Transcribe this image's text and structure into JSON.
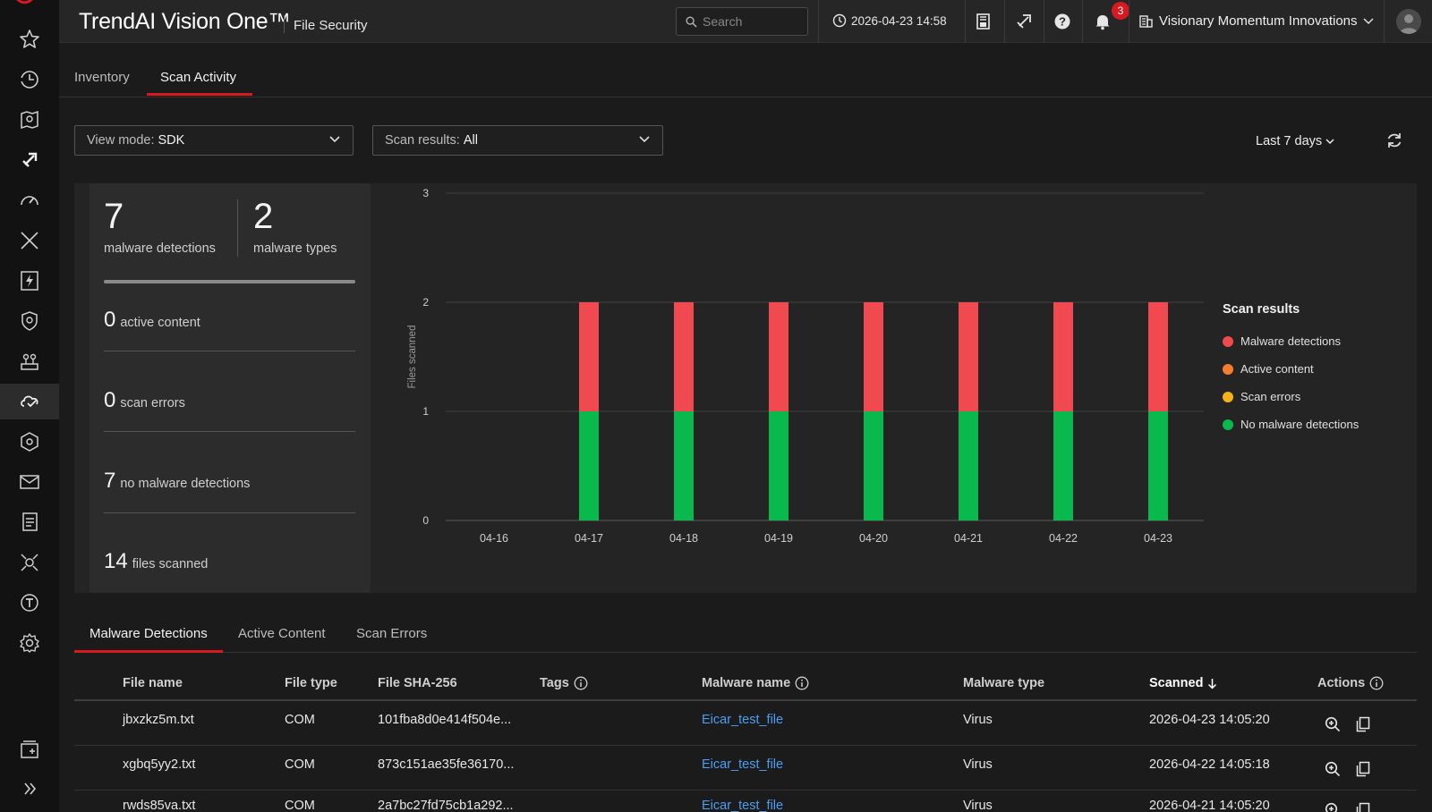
{
  "header": {
    "brand": "TrendAI Vision One™",
    "product": "File Security",
    "search_placeholder": "Search",
    "datetime": "2026-04-23 14:58",
    "notification_count": "3",
    "organization": "Visionary Momentum Innovations"
  },
  "rail_icons": [
    "star-icon",
    "history-icon",
    "map-pin-icon",
    "rocket-icon",
    "gauge-icon",
    "crossed-swords-icon",
    "lightning-icon",
    "shield-icon",
    "network-icon",
    "cloud-file-icon",
    "shield-settings-icon",
    "mail-icon",
    "document-icon",
    "bug-icon",
    "t-circle-icon",
    "gear-icon",
    "add-dashboard-icon",
    "expand-icon"
  ],
  "tabs": {
    "inventory": "Inventory",
    "scan_activity": "Scan Activity"
  },
  "filters": {
    "view_mode_label": "View mode:",
    "view_mode_value": "SDK",
    "scan_results_label": "Scan results:",
    "scan_results_value": "All",
    "range": "Last 7 days"
  },
  "stats": {
    "malware_detections": {
      "value": "7",
      "label": "malware detections"
    },
    "malware_types": {
      "value": "2",
      "label": "malware types"
    },
    "active_content": {
      "value": "0",
      "label": "active content"
    },
    "scan_errors": {
      "value": "0",
      "label": "scan errors"
    },
    "no_malware": {
      "value": "7",
      "label": "no malware detections"
    },
    "files_scanned": {
      "value": "14",
      "label": "files scanned"
    },
    "progress": 1.0
  },
  "chart_data": {
    "type": "bar",
    "stacked": true,
    "categories": [
      "04-16",
      "04-17",
      "04-18",
      "04-19",
      "04-20",
      "04-21",
      "04-22",
      "04-23"
    ],
    "series": [
      {
        "name": "No malware detections",
        "color": "#0ab94e",
        "values": [
          0,
          1,
          1,
          1,
          1,
          1,
          1,
          1
        ]
      },
      {
        "name": "Scan errors",
        "color": "#f5b21a",
        "values": [
          0,
          0,
          0,
          0,
          0,
          0,
          0,
          0
        ]
      },
      {
        "name": "Active content",
        "color": "#f57f2e",
        "values": [
          0,
          0,
          0,
          0,
          0,
          0,
          0,
          0
        ]
      },
      {
        "name": "Malware detections",
        "color": "#f04a50",
        "values": [
          0,
          1,
          1,
          1,
          1,
          1,
          1,
          1
        ]
      }
    ],
    "ylabel": "Files scanned",
    "ylim": [
      0,
      3
    ],
    "yticks": [
      "0",
      "1",
      "2",
      "3"
    ],
    "grid": true,
    "legend_title": "Scan results",
    "legend_order": [
      "Malware detections",
      "Active content",
      "Scan errors",
      "No malware detections"
    ]
  },
  "subtabs": {
    "malware": "Malware Detections",
    "active": "Active Content",
    "errors": "Scan Errors"
  },
  "table": {
    "columns": {
      "file_name": "File name",
      "file_type": "File type",
      "sha": "File SHA-256",
      "tags": "Tags",
      "malware_name": "Malware name",
      "malware_type": "Malware type",
      "scanned": "Scanned",
      "actions": "Actions"
    },
    "rows": [
      {
        "file_name": "jbxzkz5m.txt",
        "file_type": "COM",
        "sha": "101fba8d0e414f504e...",
        "malware_name": "Eicar_test_file",
        "malware_type": "Virus",
        "scanned": "2026-04-23 14:05:20"
      },
      {
        "file_name": "xgbq5yy2.txt",
        "file_type": "COM",
        "sha": "873c151ae35fe36170...",
        "malware_name": "Eicar_test_file",
        "malware_type": "Virus",
        "scanned": "2026-04-22 14:05:18"
      },
      {
        "file_name": "rwds85va.txt",
        "file_type": "COM",
        "sha": "2a7bc27fd75cb1a292...",
        "malware_name": "Eicar_test_file",
        "malware_type": "Virus",
        "scanned": "2026-04-21 14:05:20"
      }
    ]
  }
}
